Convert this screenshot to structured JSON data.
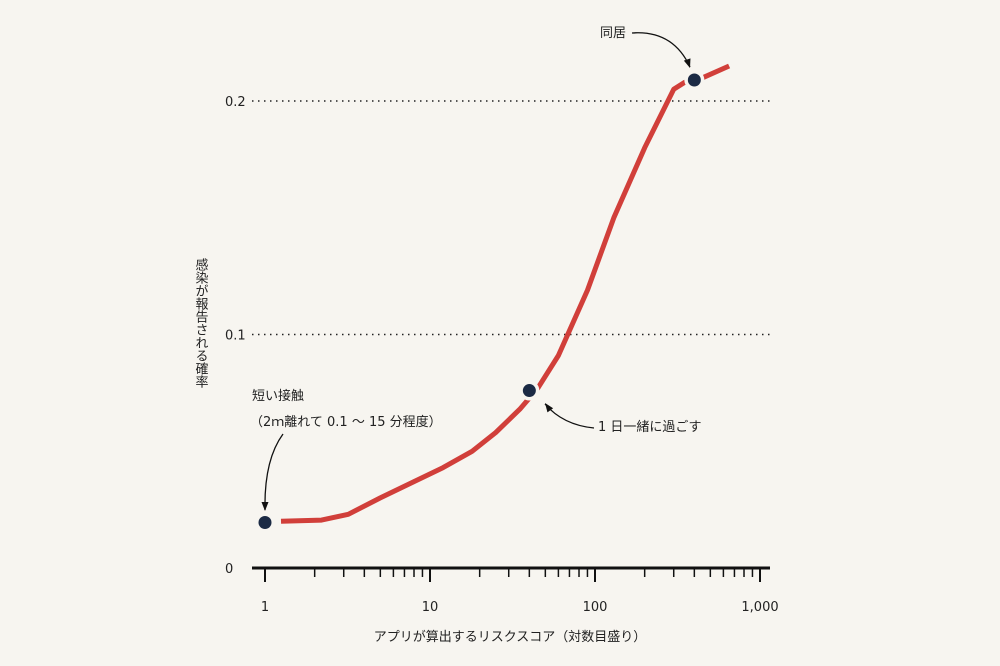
{
  "chart_data": {
    "type": "line",
    "title": "",
    "xlabel": "アプリが算出するリスクスコア（対数目盛り）",
    "ylabel": "感染が報告される確率",
    "x_scale": "log",
    "xlim": [
      0.95,
      1100
    ],
    "ylim": [
      0,
      0.215
    ],
    "x_ticks": [
      {
        "value": 1,
        "label": "1"
      },
      {
        "value": 10,
        "label": "10"
      },
      {
        "value": 100,
        "label": "100"
      },
      {
        "value": 1000,
        "label": "1,000"
      }
    ],
    "y_ticks": [
      {
        "value": 0,
        "label": "0"
      },
      {
        "value": 0.1,
        "label": "0.1"
      },
      {
        "value": 0.2,
        "label": "0.2"
      }
    ],
    "grid": {
      "y_dotted_at": [
        0.1,
        0.2
      ]
    },
    "line_color": "#d13f3a",
    "point_color": "#1b2a44",
    "series": [
      {
        "x": [
          1.25,
          2.2,
          3.2,
          5,
          8,
          12,
          18,
          25,
          35,
          45,
          60,
          90,
          130,
          200,
          300,
          350,
          450,
          650
        ],
        "y": [
          0.02,
          0.0205,
          0.023,
          0.03,
          0.037,
          0.043,
          0.05,
          0.058,
          0.068,
          0.077,
          0.091,
          0.119,
          0.15,
          0.18,
          0.205,
          0.208,
          0.21,
          0.215
        ]
      }
    ],
    "annotations": [
      {
        "x": 1,
        "y": 0.0195,
        "lines": [
          "短い接触",
          "（2ｍ離れて 0.1 ～ 15 分程度）"
        ]
      },
      {
        "x": 40,
        "y": 0.076,
        "lines": [
          "1 日一緒に過ごす"
        ]
      },
      {
        "x": 400,
        "y": 0.209,
        "lines": [
          "同居"
        ]
      }
    ]
  }
}
